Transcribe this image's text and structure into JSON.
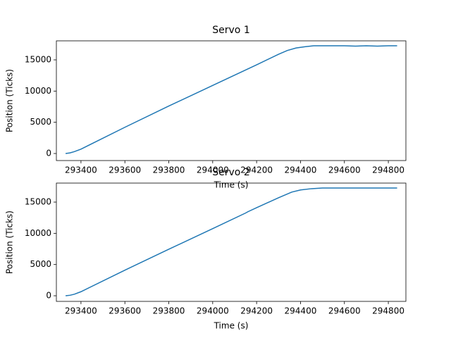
{
  "chart_data": [
    {
      "type": "line",
      "title": "Servo 1",
      "x_label": "Time (s)",
      "y_label": "Position (Ticks)",
      "x": [
        293330,
        293350,
        293370,
        293400,
        293600,
        293800,
        294000,
        294200,
        294300,
        294340,
        294380,
        294420,
        294460,
        294500,
        294600,
        294650,
        294700,
        294750,
        294800,
        294840
      ],
      "series": [
        {
          "name": "Servo 1",
          "color": "#1f77b4",
          "values": [
            0,
            100,
            300,
            700,
            4200,
            7600,
            10900,
            14200,
            15900,
            16500,
            16900,
            17100,
            17250,
            17250,
            17250,
            17200,
            17250,
            17200,
            17250,
            17250
          ]
        }
      ],
      "xlim": [
        293288,
        294880
      ],
      "xticks": [
        293400,
        293600,
        293800,
        294000,
        294200,
        294400,
        294600,
        294800
      ],
      "ylim": [
        -1128,
        18045
      ],
      "yticks": [
        0,
        5000,
        10000,
        15000
      ],
      "grid": false
    },
    {
      "type": "line",
      "title": "Servo 2",
      "x_label": "Time (s)",
      "y_label": "Position (Ticks)",
      "x": [
        293330,
        293350,
        293370,
        293400,
        293600,
        293800,
        294000,
        294150,
        294160,
        294200,
        294300,
        294360,
        294400,
        294450,
        294500,
        294600,
        294700,
        294800,
        294840
      ],
      "series": [
        {
          "name": "Servo 2",
          "color": "#1f77b4",
          "values": [
            0,
            80,
            250,
            650,
            4100,
            7450,
            10750,
            13250,
            13450,
            14100,
            15700,
            16600,
            16950,
            17150,
            17250,
            17250,
            17250,
            17250,
            17250
          ]
        }
      ],
      "xlim": [
        293288,
        294880
      ],
      "xticks": [
        293400,
        293600,
        293800,
        294000,
        294200,
        294400,
        294600,
        294800
      ],
      "ylim": [
        -900,
        18045
      ],
      "yticks": [
        0,
        5000,
        10000,
        15000
      ],
      "grid": false
    }
  ]
}
